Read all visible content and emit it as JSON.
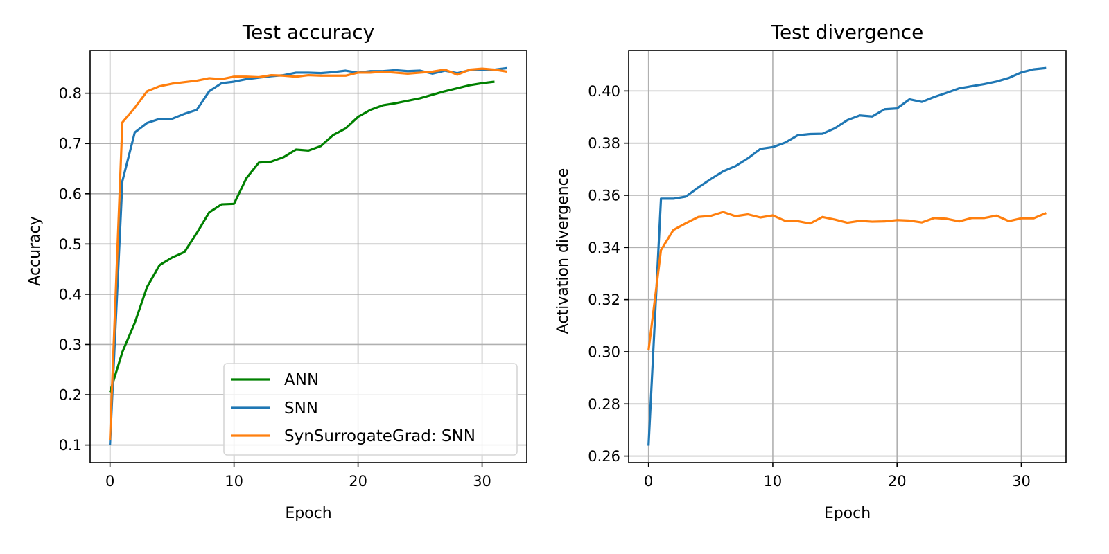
{
  "colors": {
    "ANN": "#008000",
    "SNN": "#1f77b4",
    "SynSurrogateGrad: SNN": "#ff7f0e",
    "grid": "#b0b0b0"
  },
  "chart_data": [
    {
      "type": "line",
      "title": "Test accuracy",
      "xlabel": "Epoch",
      "ylabel": "Accuracy",
      "xlim": [
        -1.6,
        33.6
      ],
      "ylim": [
        0.065,
        0.885
      ],
      "xticks": [
        0,
        10,
        20,
        30
      ],
      "yticks": [
        0.1,
        0.2,
        0.3,
        0.4,
        0.5,
        0.6,
        0.7,
        0.8
      ],
      "xtick_labels": [
        "0",
        "10",
        "20",
        "30"
      ],
      "ytick_labels": [
        "0.1",
        "0.2",
        "0.3",
        "0.4",
        "0.5",
        "0.6",
        "0.7",
        "0.8"
      ],
      "grid": true,
      "legend": {
        "placement": "lower right",
        "entries": [
          "ANN",
          "SNN",
          "SynSurrogateGrad: SNN"
        ]
      },
      "series": [
        {
          "name": "ANN",
          "x": [
            0,
            1,
            2,
            3,
            4,
            5,
            6,
            7,
            8,
            9,
            10,
            11,
            12,
            13,
            14,
            15,
            16,
            17,
            18,
            19,
            20,
            21,
            22,
            23,
            24,
            25,
            26,
            27,
            28,
            29,
            30,
            31
          ],
          "values": [
            0.205,
            0.285,
            0.343,
            0.415,
            0.458,
            0.473,
            0.484,
            0.522,
            0.563,
            0.579,
            0.58,
            0.631,
            0.662,
            0.664,
            0.673,
            0.688,
            0.686,
            0.695,
            0.717,
            0.73,
            0.753,
            0.767,
            0.776,
            0.78,
            0.785,
            0.79,
            0.797,
            0.804,
            0.81,
            0.816,
            0.82,
            0.823
          ]
        },
        {
          "name": "SNN",
          "x": [
            0,
            1,
            2,
            3,
            4,
            5,
            6,
            7,
            8,
            9,
            10,
            11,
            12,
            13,
            14,
            15,
            16,
            17,
            18,
            19,
            20,
            21,
            22,
            23,
            24,
            25,
            26,
            27,
            28,
            29,
            30,
            31,
            32
          ],
          "values": [
            0.1,
            0.625,
            0.722,
            0.741,
            0.749,
            0.749,
            0.759,
            0.767,
            0.804,
            0.82,
            0.823,
            0.828,
            0.831,
            0.834,
            0.836,
            0.841,
            0.841,
            0.84,
            0.842,
            0.845,
            0.841,
            0.844,
            0.844,
            0.846,
            0.844,
            0.845,
            0.839,
            0.845,
            0.84,
            0.846,
            0.846,
            0.847,
            0.85
          ]
        },
        {
          "name": "SynSurrogateGrad: SNN",
          "x": [
            0,
            1,
            2,
            3,
            4,
            5,
            6,
            7,
            8,
            9,
            10,
            11,
            12,
            13,
            14,
            15,
            16,
            17,
            18,
            19,
            20,
            21,
            22,
            23,
            24,
            25,
            26,
            27,
            28,
            29,
            30,
            31,
            32
          ],
          "values": [
            0.11,
            0.742,
            0.771,
            0.804,
            0.814,
            0.819,
            0.822,
            0.825,
            0.83,
            0.828,
            0.833,
            0.833,
            0.832,
            0.836,
            0.835,
            0.833,
            0.836,
            0.835,
            0.835,
            0.835,
            0.841,
            0.841,
            0.843,
            0.841,
            0.839,
            0.841,
            0.843,
            0.847,
            0.837,
            0.847,
            0.849,
            0.847,
            0.843
          ]
        }
      ]
    },
    {
      "type": "line",
      "title": "Test divergence",
      "xlabel": "Epoch",
      "ylabel": "Activation divergence",
      "xlim": [
        -1.6,
        33.6
      ],
      "ylim": [
        0.2575,
        0.4155
      ],
      "xticks": [
        0,
        10,
        20,
        30
      ],
      "yticks": [
        0.26,
        0.28,
        0.3,
        0.32,
        0.34,
        0.36,
        0.38,
        0.4
      ],
      "xtick_labels": [
        "0",
        "10",
        "20",
        "30"
      ],
      "ytick_labels": [
        "0.26",
        "0.28",
        "0.30",
        "0.32",
        "0.34",
        "0.36",
        "0.38",
        "0.40"
      ],
      "grid": true,
      "series": [
        {
          "name": "SNN",
          "x": [
            0,
            1,
            2,
            3,
            4,
            5,
            6,
            7,
            8,
            9,
            10,
            11,
            12,
            13,
            14,
            15,
            16,
            17,
            18,
            19,
            20,
            21,
            22,
            23,
            24,
            25,
            26,
            27,
            28,
            29,
            30,
            31,
            32
          ],
          "values": [
            0.264,
            0.3587,
            0.3587,
            0.3595,
            0.363,
            0.3662,
            0.3692,
            0.3712,
            0.3742,
            0.3778,
            0.3785,
            0.3802,
            0.383,
            0.3835,
            0.3836,
            0.3857,
            0.3888,
            0.3906,
            0.3902,
            0.393,
            0.3933,
            0.3968,
            0.3958,
            0.3977,
            0.3993,
            0.401,
            0.4018,
            0.4026,
            0.4036,
            0.405,
            0.4071,
            0.4083,
            0.4088
          ]
        },
        {
          "name": "SynSurrogateGrad: SNN",
          "x": [
            0,
            1,
            2,
            3,
            4,
            5,
            6,
            7,
            8,
            9,
            10,
            11,
            12,
            13,
            14,
            15,
            16,
            17,
            18,
            19,
            20,
            21,
            22,
            23,
            24,
            25,
            26,
            27,
            28,
            29,
            30,
            31,
            32
          ],
          "values": [
            0.3005,
            0.339,
            0.3467,
            0.3493,
            0.3517,
            0.3521,
            0.3536,
            0.352,
            0.3527,
            0.3515,
            0.3523,
            0.3502,
            0.3501,
            0.3492,
            0.3517,
            0.3507,
            0.3495,
            0.3502,
            0.3499,
            0.35,
            0.3505,
            0.3503,
            0.3496,
            0.3513,
            0.351,
            0.35,
            0.3513,
            0.3513,
            0.3522,
            0.3501,
            0.3512,
            0.3512,
            0.3532
          ]
        }
      ]
    }
  ]
}
